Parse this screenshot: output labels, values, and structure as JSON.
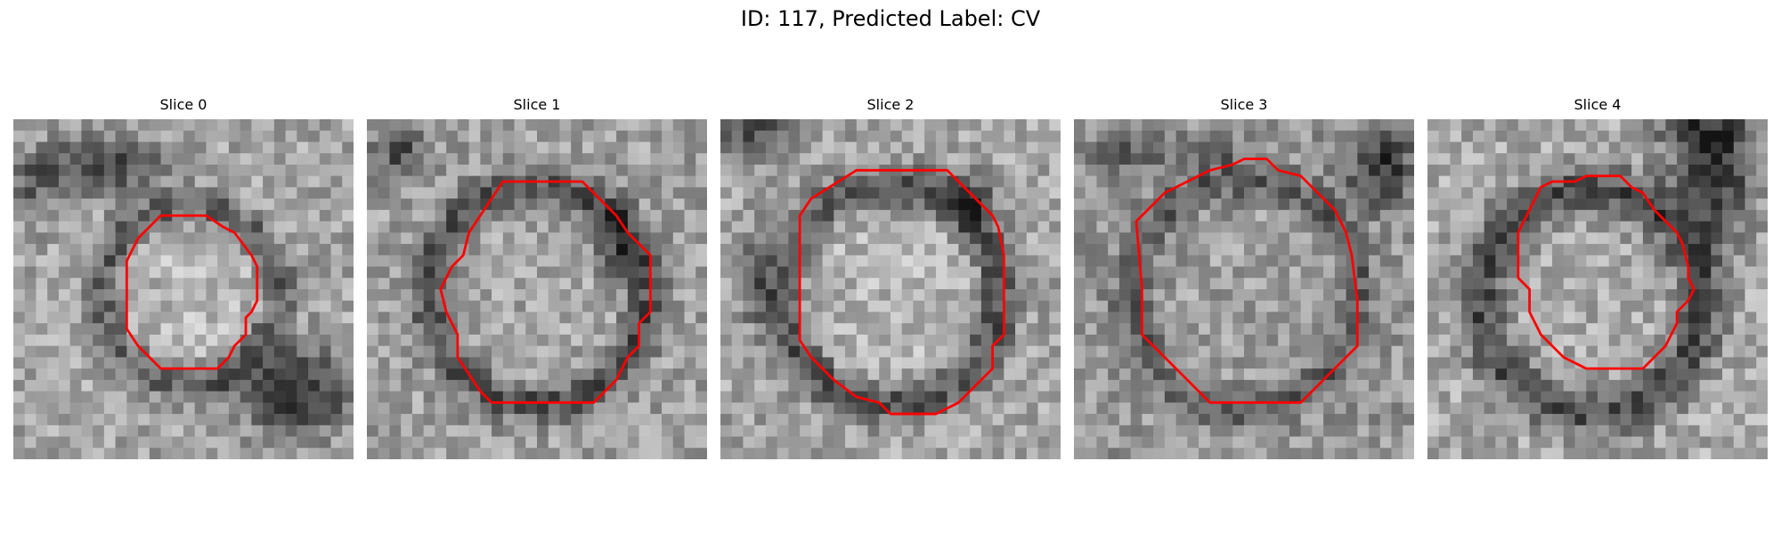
{
  "figure": {
    "title": "ID: 117, Predicted Label: CV"
  },
  "slices": [
    {
      "title": "Slice 0"
    },
    {
      "title": "Slice 1"
    },
    {
      "title": "Slice 2"
    },
    {
      "title": "Slice 3"
    },
    {
      "title": "Slice 4"
    }
  ],
  "colors": {
    "contour": "#ff0000",
    "background": "#ffffff"
  }
}
